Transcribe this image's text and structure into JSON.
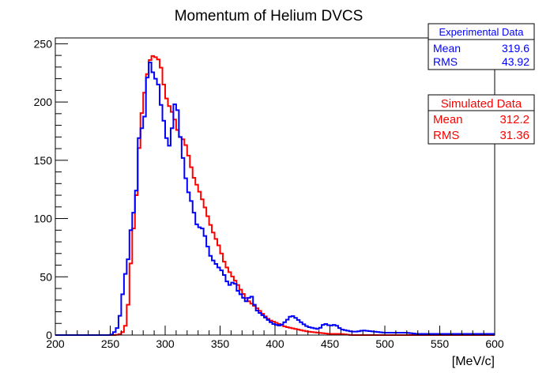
{
  "chart_data": {
    "type": "histogram",
    "title": "Momentum of Helium DVCS",
    "xlabel": "[MeV/c]",
    "ylabel": "",
    "xlim": [
      200,
      600
    ],
    "ylim": [
      0,
      255
    ],
    "bin_width": 2.5,
    "x_ticks": [
      "200",
      "250",
      "300",
      "350",
      "400",
      "450",
      "500",
      "550",
      "600"
    ],
    "y_ticks": [
      "0",
      "50",
      "100",
      "150",
      "200",
      "250"
    ],
    "grid": false,
    "series": [
      {
        "name": "Simulated Data",
        "color": "#ff0000",
        "control_points": [
          [
            200,
            0
          ],
          [
            255,
            0
          ],
          [
            260,
            1
          ],
          [
            262.5,
            4
          ],
          [
            265,
            12
          ],
          [
            267.5,
            40
          ],
          [
            270,
            83
          ],
          [
            272.5,
            100
          ],
          [
            275,
            140
          ],
          [
            277.5,
            181
          ],
          [
            280,
            200
          ],
          [
            282.5,
            216
          ],
          [
            285,
            232
          ],
          [
            287.5,
            240
          ],
          [
            290,
            239
          ],
          [
            292.5,
            238
          ],
          [
            295,
            235
          ],
          [
            297.5,
            224
          ],
          [
            300,
            206
          ],
          [
            302.5,
            200
          ],
          [
            305,
            193
          ],
          [
            307.5,
            190
          ],
          [
            310,
            180
          ],
          [
            312.5,
            172
          ],
          [
            315,
            168
          ],
          [
            317.5,
            168
          ],
          [
            320,
            158
          ],
          [
            322.5,
            150
          ],
          [
            325,
            138
          ],
          [
            327.5,
            132
          ],
          [
            330,
            126
          ],
          [
            332.5,
            120
          ],
          [
            335,
            113
          ],
          [
            337.5,
            106
          ],
          [
            340,
            98
          ],
          [
            342.5,
            91
          ],
          [
            345,
            85
          ],
          [
            347.5,
            80
          ],
          [
            350,
            74
          ],
          [
            352.5,
            66
          ],
          [
            355,
            60
          ],
          [
            360,
            52
          ],
          [
            365,
            45
          ],
          [
            370,
            37
          ],
          [
            375,
            30
          ],
          [
            380,
            26
          ],
          [
            385,
            22
          ],
          [
            390,
            17
          ],
          [
            395,
            13
          ],
          [
            400,
            11
          ],
          [
            405,
            9
          ],
          [
            410,
            7
          ],
          [
            415,
            6
          ],
          [
            420,
            5
          ],
          [
            425,
            4
          ],
          [
            430,
            3
          ],
          [
            440,
            2
          ],
          [
            450,
            1
          ],
          [
            460,
            1
          ],
          [
            470,
            0
          ],
          [
            600,
            0
          ]
        ],
        "stats": {
          "title": "Simulated Data",
          "mean_label": "Mean",
          "mean": "312.2",
          "rms_label": "RMS",
          "rms": "31.36"
        }
      },
      {
        "name": "Experimental Data",
        "color": "#0000ff",
        "control_points": [
          [
            200,
            0
          ],
          [
            250,
            0
          ],
          [
            252.5,
            1
          ],
          [
            255,
            4
          ],
          [
            257.5,
            8
          ],
          [
            260,
            25
          ],
          [
            262.5,
            45
          ],
          [
            265,
            60
          ],
          [
            267.5,
            70
          ],
          [
            270,
            110
          ],
          [
            272.5,
            100
          ],
          [
            275,
            148
          ],
          [
            277.5,
            190
          ],
          [
            280,
            165
          ],
          [
            282.5,
            210
          ],
          [
            285,
            232
          ],
          [
            287.5,
            236
          ],
          [
            290,
            215
          ],
          [
            292.5,
            225
          ],
          [
            295,
            205
          ],
          [
            297.5,
            190
          ],
          [
            300,
            178
          ],
          [
            302.5,
            160
          ],
          [
            305,
            165
          ],
          [
            307.5,
            190
          ],
          [
            310,
            206
          ],
          [
            312.5,
            180
          ],
          [
            315,
            160
          ],
          [
            317.5,
            144
          ],
          [
            320,
            125
          ],
          [
            322.5,
            120
          ],
          [
            325,
            110
          ],
          [
            327.5,
            100
          ],
          [
            330,
            90
          ],
          [
            332.5,
            95
          ],
          [
            335,
            88
          ],
          [
            337.5,
            82
          ],
          [
            340,
            70
          ],
          [
            342.5,
            66
          ],
          [
            345,
            62
          ],
          [
            347.5,
            60
          ],
          [
            350,
            56
          ],
          [
            352.5,
            55
          ],
          [
            355,
            48
          ],
          [
            357.5,
            44
          ],
          [
            360,
            42
          ],
          [
            362.5,
            48
          ],
          [
            365,
            40
          ],
          [
            367.5,
            36
          ],
          [
            370,
            34
          ],
          [
            372.5,
            30
          ],
          [
            375,
            28
          ],
          [
            377.5,
            36
          ],
          [
            380,
            30
          ],
          [
            382.5,
            22
          ],
          [
            385,
            20
          ],
          [
            387.5,
            18
          ],
          [
            390,
            16
          ],
          [
            392.5,
            14
          ],
          [
            395,
            12
          ],
          [
            397.5,
            10
          ],
          [
            400,
            9
          ],
          [
            405,
            8
          ],
          [
            410,
            12
          ],
          [
            415,
            17
          ],
          [
            420,
            14
          ],
          [
            425,
            10
          ],
          [
            430,
            7
          ],
          [
            435,
            6
          ],
          [
            440,
            5
          ],
          [
            445,
            10
          ],
          [
            450,
            8
          ],
          [
            455,
            9
          ],
          [
            460,
            5
          ],
          [
            465,
            4
          ],
          [
            470,
            3
          ],
          [
            475,
            3
          ],
          [
            480,
            4
          ],
          [
            490,
            3
          ],
          [
            500,
            2
          ],
          [
            510,
            2
          ],
          [
            520,
            2
          ],
          [
            530,
            1
          ],
          [
            550,
            1
          ],
          [
            575,
            1
          ],
          [
            590,
            1
          ],
          [
            600,
            1
          ]
        ],
        "stats": {
          "title": "Experimental Data",
          "mean_label": "Mean",
          "mean": "319.6",
          "rms_label": "RMS",
          "rms": "43.92"
        }
      }
    ],
    "legend": "top-right"
  }
}
